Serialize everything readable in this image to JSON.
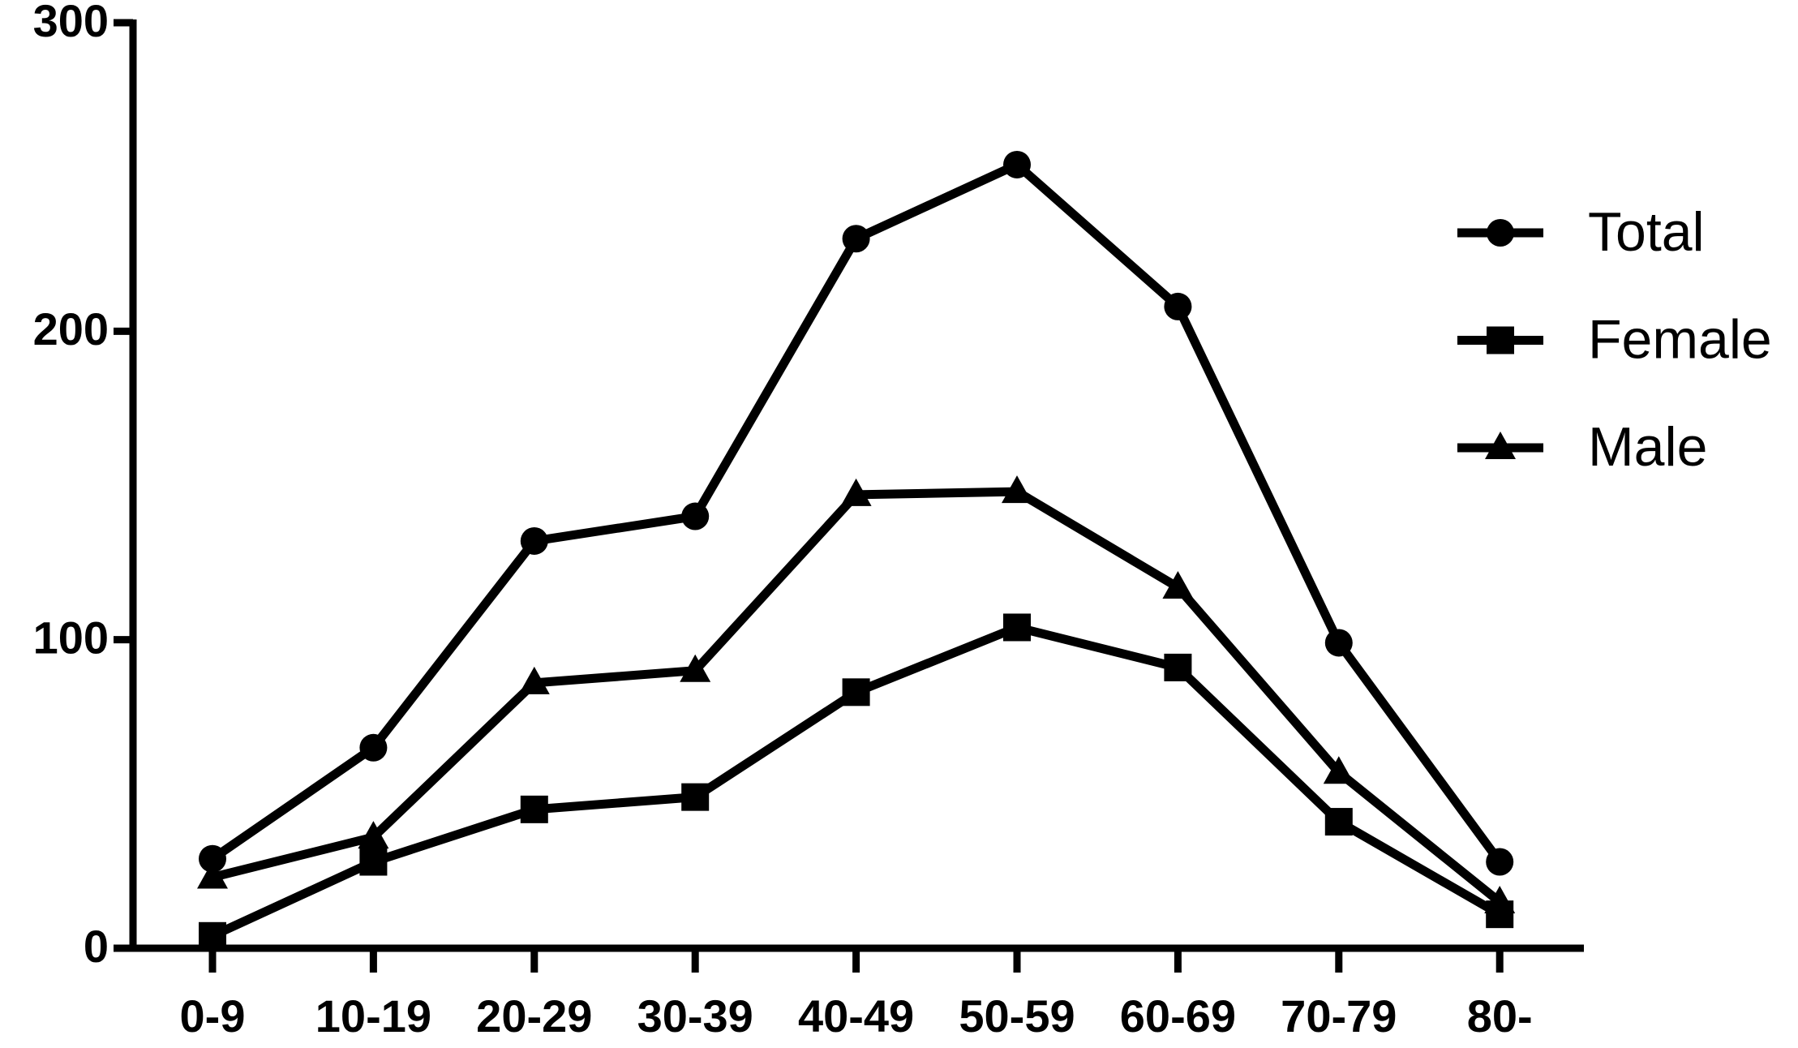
{
  "chart_data": {
    "type": "line",
    "categories": [
      "0-9",
      "10-19",
      "20-29",
      "30-39",
      "40-49",
      "50-59",
      "60-69",
      "70-79",
      "80-"
    ],
    "series": [
      {
        "name": "Total",
        "color": "#000000",
        "marker": "circle",
        "values": [
          29,
          65,
          132,
          140,
          230,
          254,
          208,
          99,
          28
        ]
      },
      {
        "name": "Female",
        "color": "#000000",
        "marker": "square",
        "values": [
          4,
          28,
          45,
          49,
          83,
          104,
          91,
          41,
          11
        ]
      },
      {
        "name": "Male",
        "color": "#000000",
        "marker": "triangle",
        "values": [
          23,
          36,
          86,
          90,
          147,
          148,
          117,
          57,
          15
        ]
      }
    ],
    "ylim": [
      0,
      300
    ],
    "yticks": [
      0,
      100,
      200,
      300
    ],
    "legend": "right"
  }
}
